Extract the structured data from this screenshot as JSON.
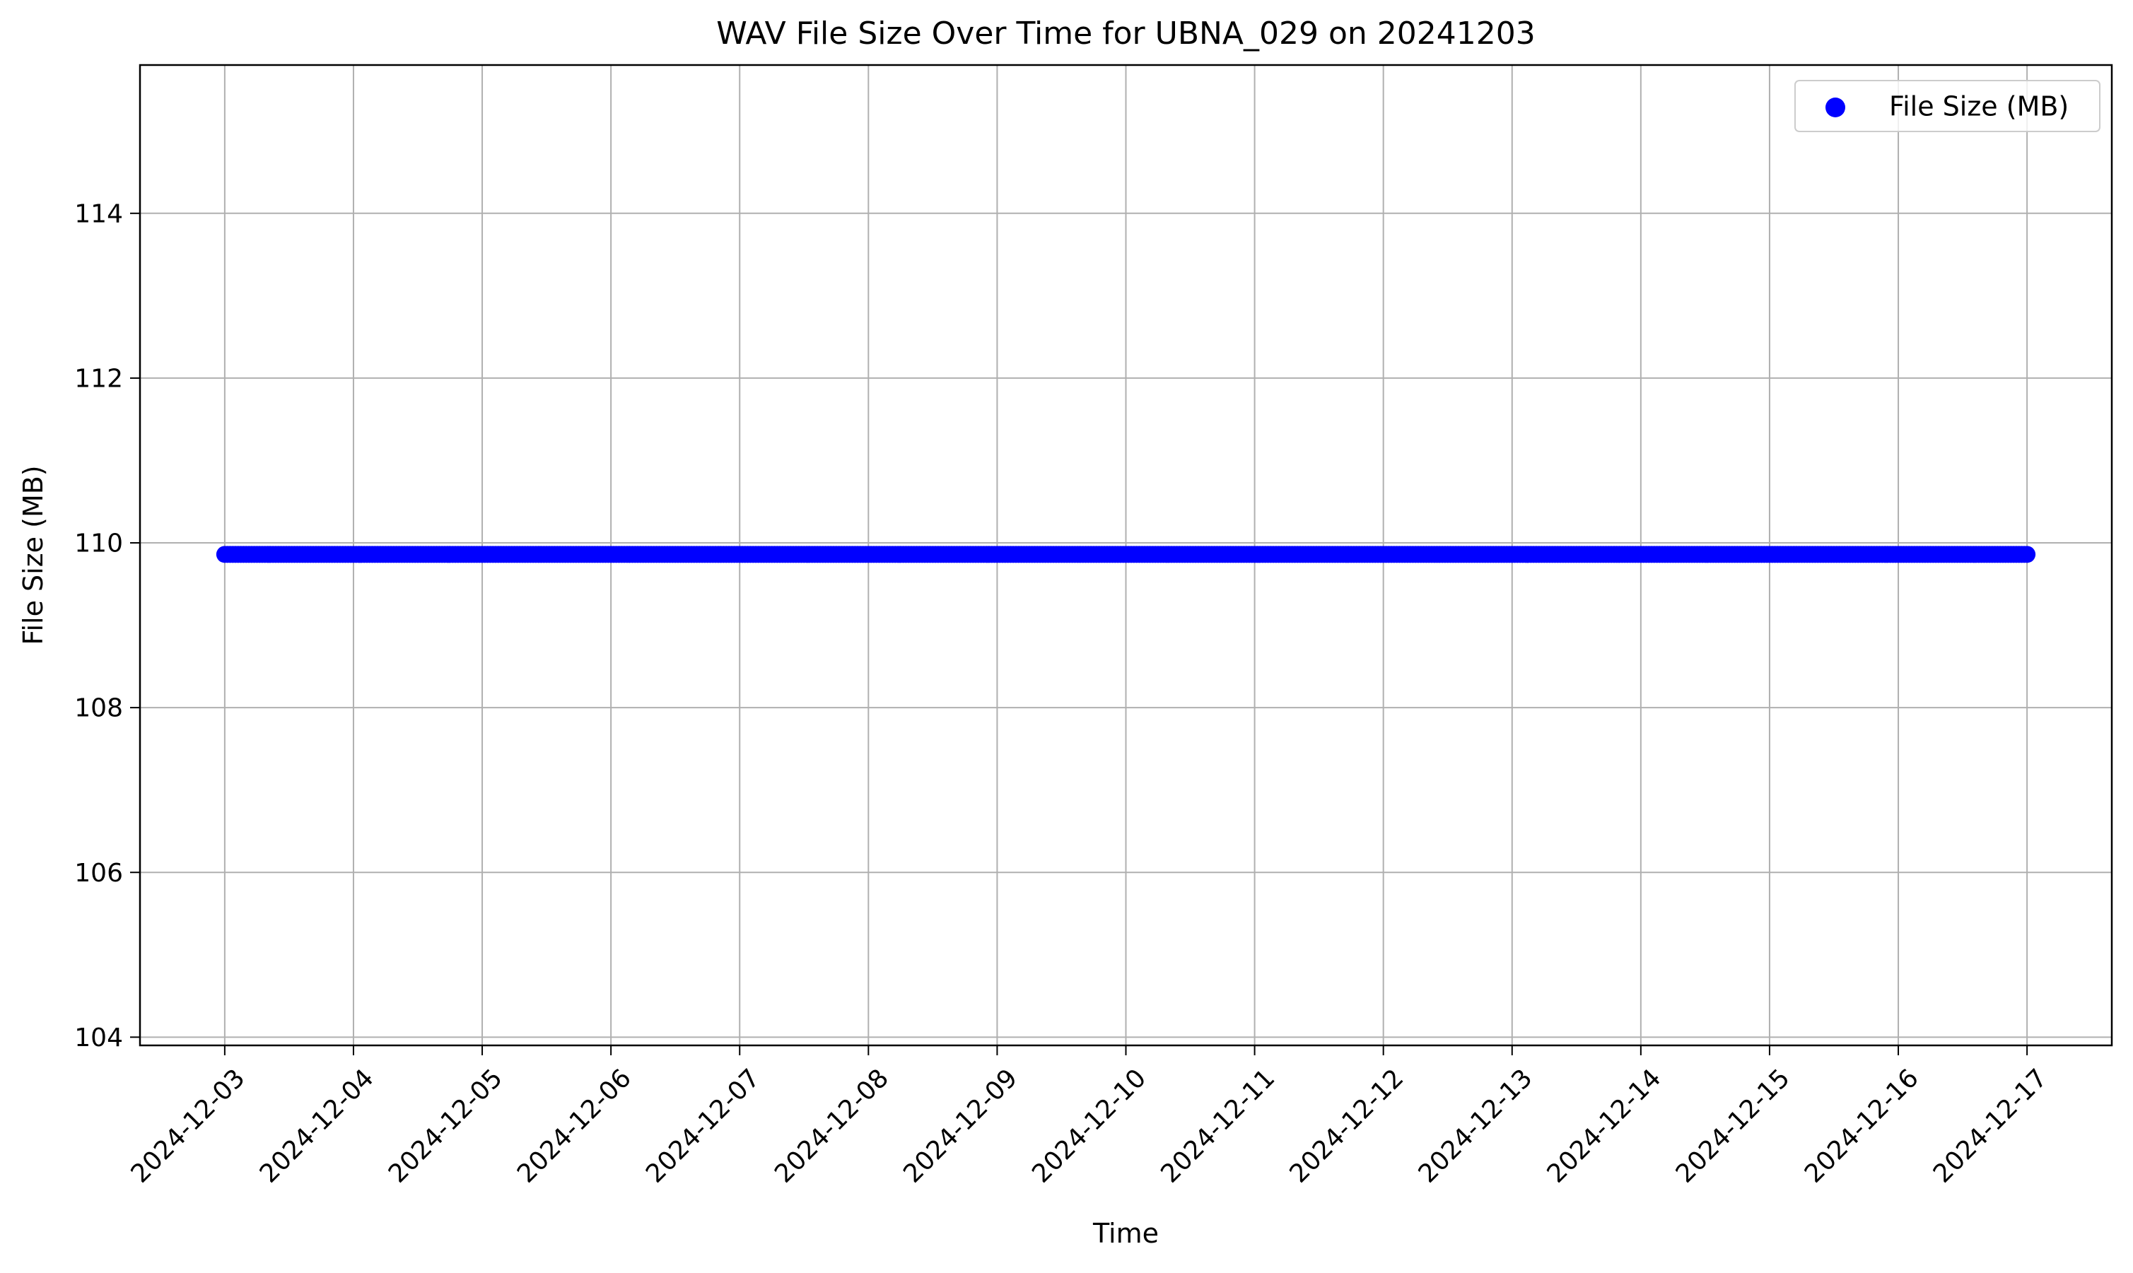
{
  "chart_data": {
    "type": "scatter",
    "title": "WAV File Size Over Time for UBNA_029 on 20241203",
    "xlabel": "Time",
    "ylabel": "File Size (MB)",
    "x_ticks": [
      "2024-12-03",
      "2024-12-04",
      "2024-12-05",
      "2024-12-06",
      "2024-12-07",
      "2024-12-08",
      "2024-12-09",
      "2024-12-10",
      "2024-12-11",
      "2024-12-12",
      "2024-12-13",
      "2024-12-14",
      "2024-12-15",
      "2024-12-16",
      "2024-12-17"
    ],
    "y_ticks": [
      "104",
      "106",
      "108",
      "110",
      "112",
      "114"
    ],
    "xlim": [
      "2024-12-02T08:12",
      "2024-12-17T15:48"
    ],
    "ylim": [
      103.9,
      115.8
    ],
    "grid": true,
    "legend_position": "top-right",
    "series": [
      {
        "name": "File Size (MB)",
        "color": "#0000ff",
        "x_start": "2024-12-03T00:00",
        "x_end": "2024-12-17T00:00",
        "interval_minutes": 30,
        "value": 109.86
      }
    ]
  }
}
